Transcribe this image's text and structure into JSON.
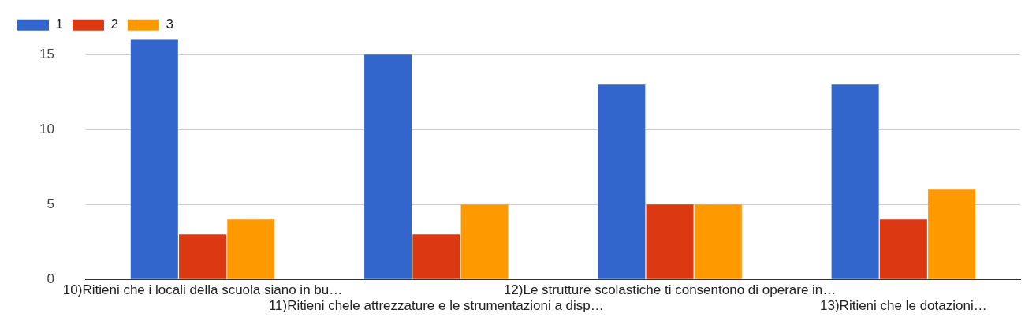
{
  "chart_data": {
    "type": "bar",
    "categories": [
      "10)Ritieni che i locali della scuola siano in bu…",
      "11)Ritieni chele attrezzature e le strumentazioni a disp…",
      "12)Le strutture scolastiche ti consentono di operare in…",
      "13)Ritieni che le dotazioni…"
    ],
    "series": [
      {
        "name": "1",
        "color": "#3366cc",
        "values": [
          16,
          15,
          13,
          13
        ]
      },
      {
        "name": "2",
        "color": "#dc3912",
        "values": [
          3,
          3,
          5,
          4
        ]
      },
      {
        "name": "3",
        "color": "#ff9900",
        "values": [
          4,
          5,
          5,
          6
        ]
      }
    ],
    "ylim": [
      0,
      16
    ],
    "yticks": [
      0,
      5,
      10,
      15
    ],
    "grid": "y",
    "legend": "top left"
  }
}
